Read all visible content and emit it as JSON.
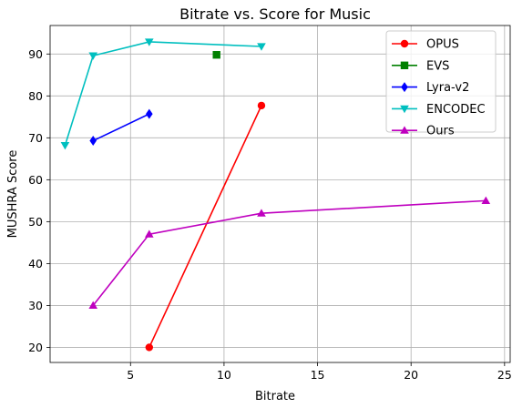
{
  "chart_data": {
    "type": "line",
    "title": "Bitrate vs. Score for Music",
    "xlabel": "Bitrate",
    "ylabel": "MUSHRA Score",
    "xlim": [
      0.7,
      25.3
    ],
    "ylim": [
      16.4,
      96.8
    ],
    "xticks": [
      5,
      10,
      15,
      20,
      25
    ],
    "yticks": [
      20,
      30,
      40,
      50,
      60,
      70,
      80,
      90
    ],
    "grid": true,
    "legend_position": "top-right",
    "series": [
      {
        "name": "OPUS",
        "color": "#ff0000",
        "marker": "circle",
        "x": [
          6,
          12
        ],
        "y": [
          20,
          77.7
        ]
      },
      {
        "name": "EVS",
        "color": "#008000",
        "marker": "square",
        "x": [
          9.6
        ],
        "y": [
          89.8
        ]
      },
      {
        "name": "Lyra-v2",
        "color": "#0000ff",
        "marker": "diamond",
        "x": [
          3,
          6
        ],
        "y": [
          69.3,
          75.7
        ]
      },
      {
        "name": "ENCODEC",
        "color": "#00bfbf",
        "marker": "triangle-down",
        "x": [
          1.5,
          3,
          6,
          12
        ],
        "y": [
          68.2,
          89.6,
          92.9,
          91.8
        ]
      },
      {
        "name": "Ours",
        "color": "#bf00bf",
        "marker": "triangle-up",
        "x": [
          3,
          6,
          12,
          24
        ],
        "y": [
          30,
          47,
          52,
          55
        ]
      }
    ]
  }
}
